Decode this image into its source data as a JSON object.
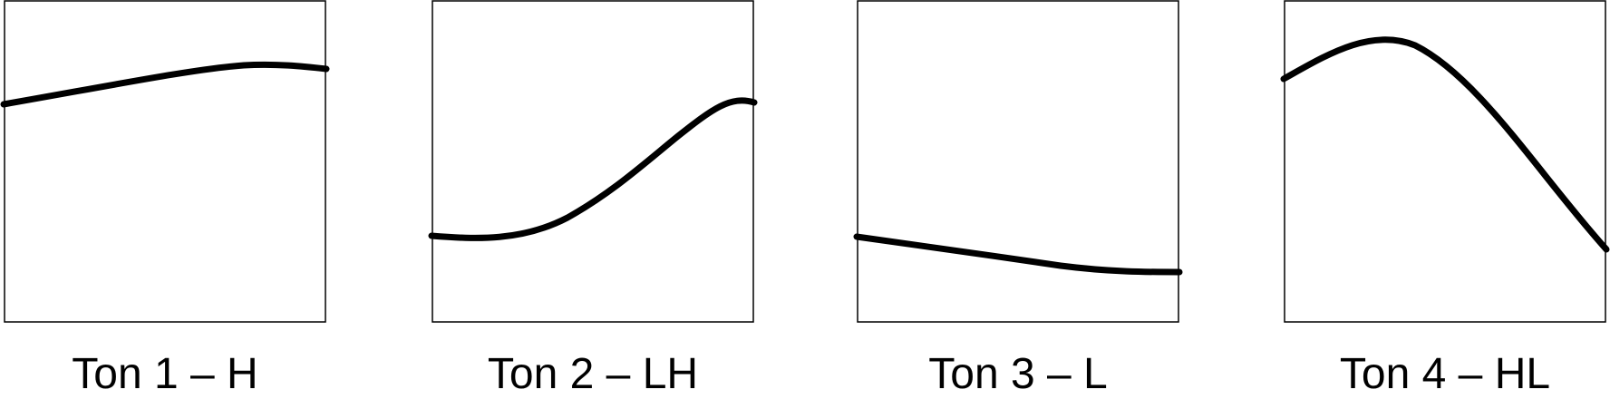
{
  "panels": [
    {
      "label": "Ton 1 – H"
    },
    {
      "label": "Ton 2 – LH"
    },
    {
      "label": "Ton 3 – L"
    },
    {
      "label": "Ton 4 – HL"
    }
  ],
  "colors": {
    "line": "#000000",
    "frame": "#000000",
    "background": "#ffffff"
  }
}
